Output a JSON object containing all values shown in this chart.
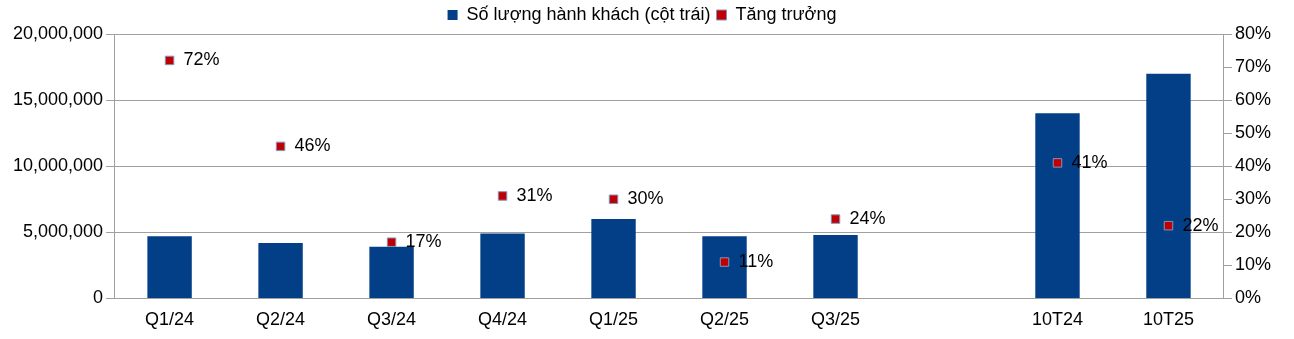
{
  "chart_data": {
    "type": "bar",
    "categories": [
      "Q1/24",
      "Q2/24",
      "Q3/24",
      "Q4/24",
      "Q1/25",
      "Q2/25",
      "Q3/25",
      null,
      "10T24",
      "10T25"
    ],
    "series": [
      {
        "name": "Số lượng hành khách (cột trái)",
        "color": "#023f87",
        "values": [
          4700000,
          4200000,
          3900000,
          4900000,
          6000000,
          4700000,
          4800000,
          null,
          14000000,
          17000000
        ]
      },
      {
        "name": "Tăng trưởng",
        "type": "scatter",
        "axis": "y2",
        "color": "#c00000",
        "marker": "square",
        "values": [
          72,
          46,
          17,
          31,
          30,
          11,
          24,
          null,
          41,
          22
        ],
        "value_labels": [
          "72%",
          "46%",
          "17%",
          "31%",
          "30%",
          "11%",
          "24%",
          null,
          "41%",
          "22%"
        ]
      }
    ],
    "ylim": [
      0,
      20000000
    ],
    "yticks": [
      {
        "value": 0,
        "label": "0"
      },
      {
        "value": 5000000,
        "label": "5,000,000"
      },
      {
        "value": 10000000,
        "label": "10,000,000"
      },
      {
        "value": 15000000,
        "label": "15,000,000"
      },
      {
        "value": 20000000,
        "label": "20,000,000"
      }
    ],
    "y2lim": [
      0,
      80
    ],
    "y2ticks": [
      {
        "value": 0,
        "label": "0%"
      },
      {
        "value": 10,
        "label": "10%"
      },
      {
        "value": 20,
        "label": "20%"
      },
      {
        "value": 30,
        "label": "30%"
      },
      {
        "value": 40,
        "label": "40%"
      },
      {
        "value": 50,
        "label": "50%"
      },
      {
        "value": 60,
        "label": "60%"
      },
      {
        "value": 70,
        "label": "70%"
      },
      {
        "value": 80,
        "label": "80%"
      }
    ],
    "grid": "y",
    "legend": "top"
  }
}
